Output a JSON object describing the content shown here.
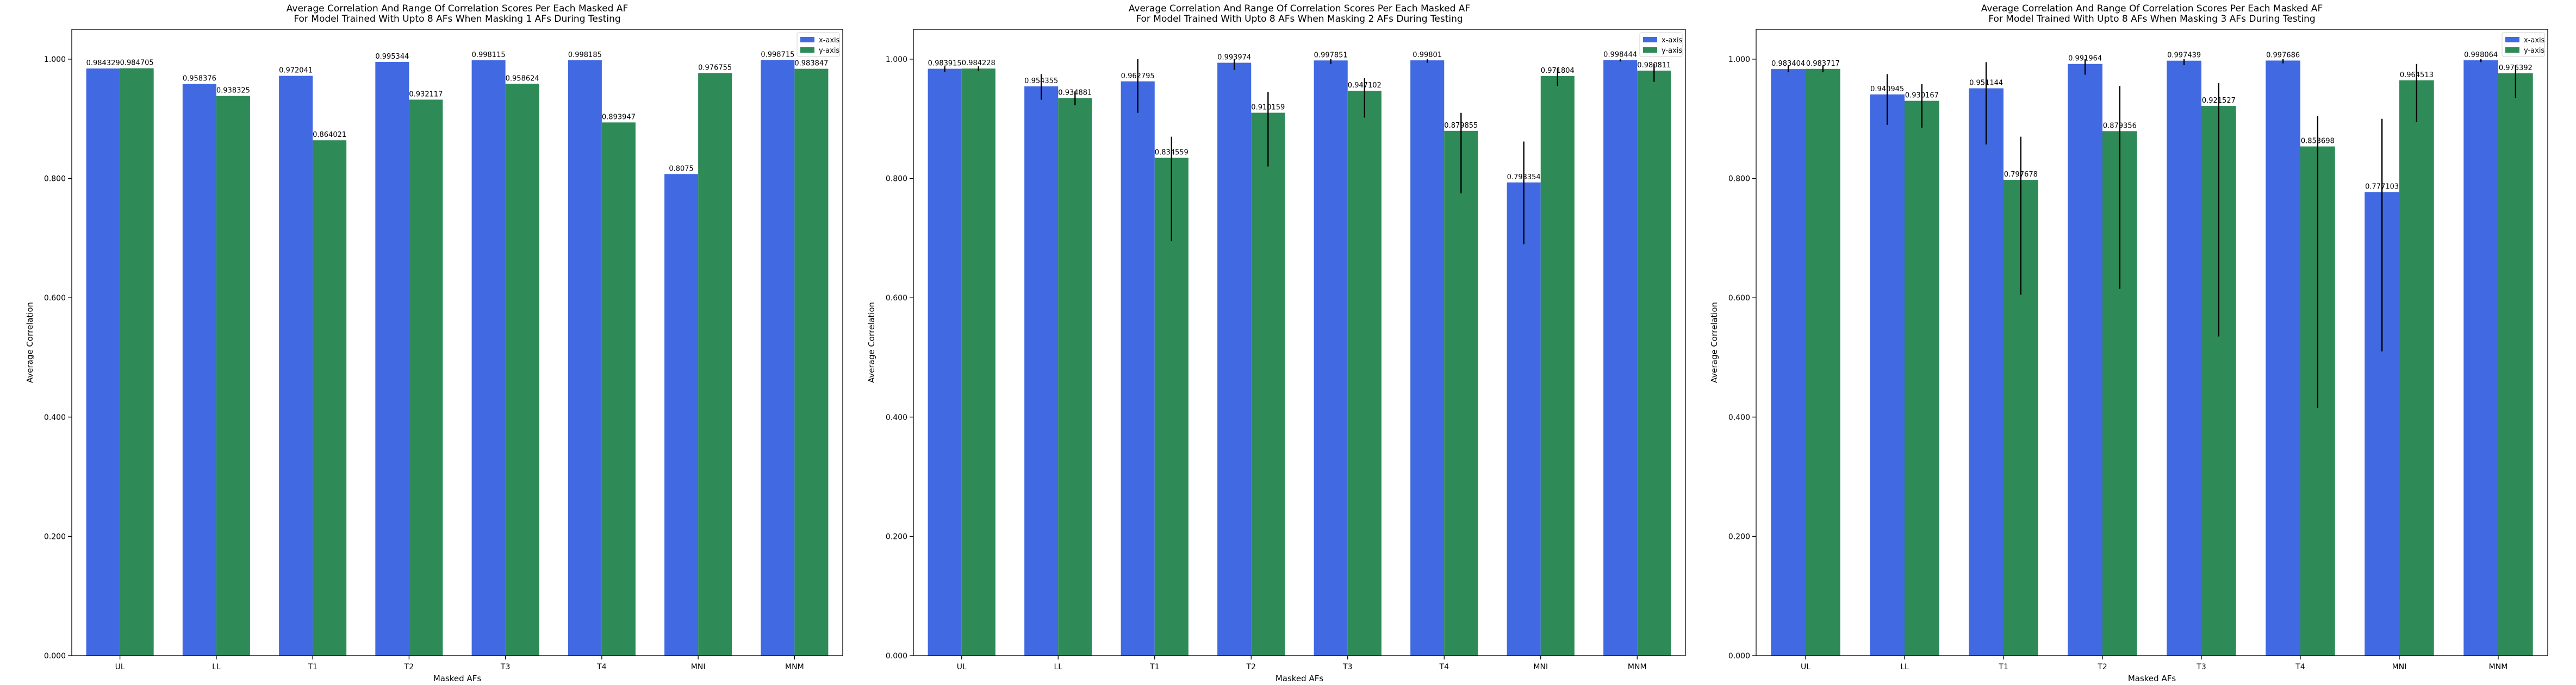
{
  "chart_data": [
    {
      "type": "bar",
      "title": "Average Correlation And Range Of Correlation Scores Per Each Masked AF\nFor Model Trained With Upto 8 AFs When Masking 1 AFs During Testing",
      "xlabel": "Masked AFs",
      "ylabel": "Average Correlation",
      "ylim": [
        0,
        1.05
      ],
      "yticks": [
        "0.000",
        "0.200",
        "0.400",
        "0.600",
        "0.800",
        "1.000"
      ],
      "categories": [
        "UL",
        "LL",
        "T1",
        "T2",
        "T3",
        "T4",
        "MNI",
        "MNM"
      ],
      "legend": "top-right",
      "series": [
        {
          "name": "x-axis",
          "color": "#4169e1",
          "values": [
            0.984329,
            0.958376,
            0.972041,
            0.995344,
            0.998115,
            0.998185,
            0.8075,
            0.998715
          ],
          "labels": [
            "0.984329",
            "0.958376",
            "0.972041",
            "0.995344",
            "0.998115",
            "0.998185",
            "0.8075",
            "0.998715"
          ],
          "err": null
        },
        {
          "name": "y-axis",
          "color": "#2e8b57",
          "values": [
            0.984705,
            0.938325,
            0.864021,
            0.932117,
            0.958624,
            0.893947,
            0.976755,
            0.983847
          ],
          "labels": [
            "0.984705",
            "0.938325",
            "0.864021",
            "0.932117",
            "0.958624",
            "0.893947",
            "0.976755",
            "0.983847"
          ],
          "err": null
        }
      ]
    },
    {
      "type": "bar",
      "title": "Average Correlation And Range Of Correlation Scores Per Each Masked AF\nFor Model Trained With Upto 8 AFs When Masking 2 AFs During Testing",
      "xlabel": "Masked AFs",
      "ylabel": "Average Correlation",
      "ylim": [
        0,
        1.05
      ],
      "yticks": [
        "0.000",
        "0.200",
        "0.400",
        "0.600",
        "0.800",
        "1.000"
      ],
      "categories": [
        "UL",
        "LL",
        "T1",
        "T2",
        "T3",
        "T4",
        "MNI",
        "MNM"
      ],
      "legend": "top-right",
      "series": [
        {
          "name": "x-axis",
          "color": "#4169e1",
          "values": [
            0.983915,
            0.954355,
            0.962795,
            0.993974,
            0.997851,
            0.99801,
            0.793354,
            0.998444
          ],
          "labels": [
            "0.983915",
            "0.954355",
            "0.962795",
            "0.993974",
            "0.997851",
            "0.99801",
            "0.793354",
            "0.998444"
          ],
          "err": [
            [
              0.979,
              0.988
            ],
            [
              0.932,
              0.975
            ],
            [
              0.91,
              1.0
            ],
            [
              0.982,
              1.0
            ],
            [
              0.992,
              1.0
            ],
            [
              0.994,
              1.0
            ],
            [
              0.69,
              0.862
            ],
            [
              0.996,
              1.0
            ]
          ]
        },
        {
          "name": "y-axis",
          "color": "#2e8b57",
          "values": [
            0.984228,
            0.934881,
            0.834559,
            0.910159,
            0.947102,
            0.879855,
            0.971804,
            0.980811
          ],
          "labels": [
            "0.984228",
            "0.934881",
            "0.834559",
            "0.910159",
            "0.947102",
            "0.879855",
            "0.971804",
            "0.980811"
          ],
          "err": [
            [
              0.98,
              0.988
            ],
            [
              0.923,
              0.946
            ],
            [
              0.695,
              0.87
            ],
            [
              0.82,
              0.945
            ],
            [
              0.902,
              0.968
            ],
            [
              0.775,
              0.91
            ],
            [
              0.955,
              0.985
            ],
            [
              0.962,
              0.992
            ]
          ]
        }
      ]
    },
    {
      "type": "bar",
      "title": "Average Correlation And Range Of Correlation Scores Per Each Masked AF\nFor Model Trained With Upto 8 AFs When Masking 3 AFs During Testing",
      "xlabel": "Masked AFs",
      "ylabel": "Average Correlation",
      "ylim": [
        0,
        1.05
      ],
      "yticks": [
        "0.000",
        "0.200",
        "0.400",
        "0.600",
        "0.800",
        "1.000"
      ],
      "categories": [
        "UL",
        "LL",
        "T1",
        "T2",
        "T3",
        "T4",
        "MNI",
        "MNM"
      ],
      "legend": "top-right",
      "series": [
        {
          "name": "x-axis",
          "color": "#4169e1",
          "values": [
            0.983404,
            0.940945,
            0.951144,
            0.991964,
            0.997439,
            0.997686,
            0.777103,
            0.998064
          ],
          "labels": [
            "0.983404",
            "0.940945",
            "0.951144",
            "0.991964",
            "0.997439",
            "0.997686",
            "0.777103",
            "0.998064"
          ],
          "err": [
            [
              0.978,
              0.989
            ],
            [
              0.89,
              0.975
            ],
            [
              0.857,
              0.995
            ],
            [
              0.974,
              1.0
            ],
            [
              0.99,
              1.0
            ],
            [
              0.993,
              1.0
            ],
            [
              0.51,
              0.9
            ],
            [
              0.995,
              1.0
            ]
          ]
        },
        {
          "name": "y-axis",
          "color": "#2e8b57",
          "values": [
            0.983717,
            0.930167,
            0.797678,
            0.879356,
            0.921527,
            0.853698,
            0.964513,
            0.976392
          ],
          "labels": [
            "0.983717",
            "0.930167",
            "0.797678",
            "0.879356",
            "0.921527",
            "0.853698",
            "0.964513",
            "0.976392"
          ],
          "err": [
            [
              0.978,
              0.989
            ],
            [
              0.885,
              0.958
            ],
            [
              0.605,
              0.87
            ],
            [
              0.615,
              0.955
            ],
            [
              0.535,
              0.96
            ],
            [
              0.415,
              0.905
            ],
            [
              0.895,
              0.992
            ],
            [
              0.935,
              0.99
            ]
          ]
        }
      ]
    }
  ]
}
